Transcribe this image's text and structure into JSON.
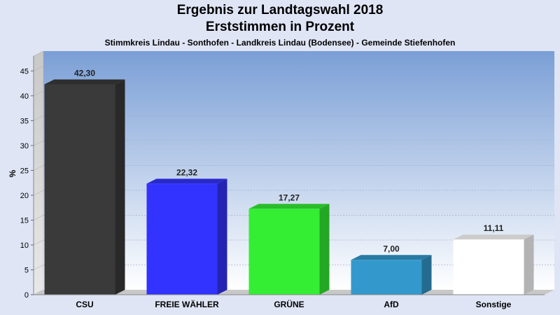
{
  "header": {
    "title": "Ergebnis zur Landtagswahl 2018",
    "subtitle": "Erststimmen in Prozent",
    "caption": "Stimmkreis Lindau - Sonthofen - Landkreis Lindau (Bodensee) - Gemeinde Stiefenhofen"
  },
  "chart_data": {
    "type": "bar",
    "title": "Ergebnis zur Landtagswahl 2018",
    "subtitle": "Erststimmen in Prozent",
    "caption": "Stimmkreis Lindau - Sonthofen - Landkreis Lindau (Bodensee) - Gemeinde Stiefenhofen",
    "categories": [
      "CSU",
      "FREIE WÄHLER",
      "GRÜNE",
      "AfD",
      "Sonstige"
    ],
    "values": [
      42.3,
      22.32,
      17.27,
      7.0,
      11.11
    ],
    "value_labels": [
      "42,30",
      "22,32",
      "17,27",
      "7,00",
      "11,11"
    ],
    "colors": [
      "#3a3a3a",
      "#3333ff",
      "#33ee33",
      "#3399cc",
      "#ffffff"
    ],
    "xlabel": "",
    "ylabel": "%",
    "ylim": [
      0,
      48
    ],
    "yticks": [
      0,
      5,
      10,
      15,
      20,
      25,
      30,
      35,
      40,
      45
    ],
    "grid": true,
    "legend": "none"
  }
}
